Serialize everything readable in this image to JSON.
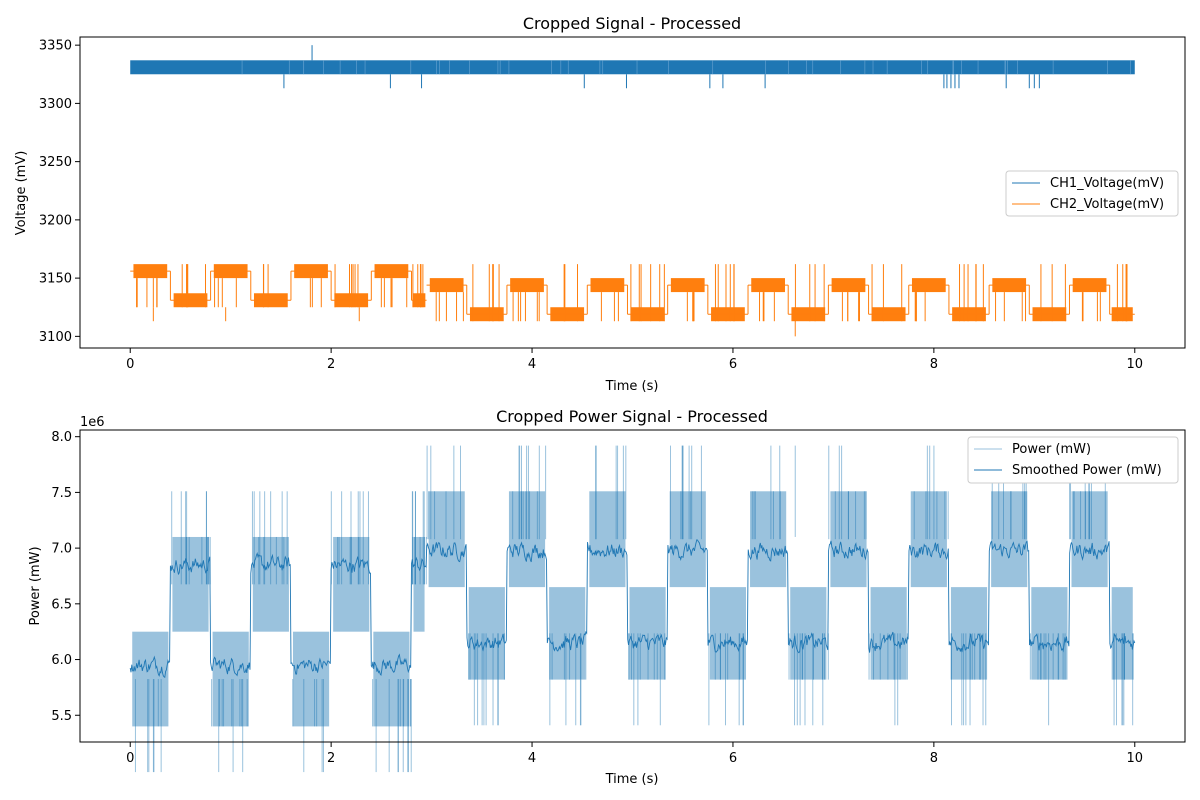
{
  "chart_data": [
    {
      "type": "line",
      "title": "Cropped Signal - Processed",
      "xlabel": "Time (s)",
      "ylabel": "Voltage (mV)",
      "xlim": [
        -0.5,
        10.5
      ],
      "ylim": [
        3090,
        3357
      ],
      "xticks": [
        0,
        2,
        4,
        6,
        8,
        10
      ],
      "yticks": [
        3100,
        3150,
        3200,
        3250,
        3300,
        3350
      ],
      "xtick_labels": [
        "0",
        "2",
        "4",
        "6",
        "8",
        "10"
      ],
      "ytick_labels": [
        "3100",
        "3150",
        "3200",
        "3250",
        "3300",
        "3350"
      ],
      "grid": false,
      "legend_placement": "center-right",
      "series": [
        {
          "name": "CH1_Voltage(mV)",
          "color": "#1f77b4",
          "band": [
            3325,
            3337
          ],
          "dip_times": [
            1.53,
            2.59,
            2.9,
            4.52,
            4.94,
            5.77,
            5.9,
            6.32,
            8.1,
            8.13,
            8.17,
            8.21,
            8.25,
            8.72,
            8.95,
            9.0,
            9.05
          ],
          "dip_value": 3313,
          "peak_times": [
            1.81
          ],
          "peak_value": 3350
        },
        {
          "name": "CH2_Voltage(mV)",
          "color": "#ff7f0e",
          "x_range": [
            0,
            10
          ],
          "segments_phase1": {
            "t_end": 2.95,
            "period": 0.8,
            "high_band": [
              3150,
              3162
            ],
            "low_band": [
              3125,
              3137
            ]
          },
          "segments_phase2": {
            "t_start": 2.95,
            "period": 0.8,
            "high_band": [
              3138,
              3150
            ],
            "low_band": [
              3113,
              3125
            ]
          },
          "spike_high": 3162,
          "spike_low": 3113,
          "outliers": [
            [
              6.62,
              3100
            ],
            [
              0.23,
              3113
            ],
            [
              0.95,
              3113
            ],
            [
              2.28,
              3113
            ]
          ]
        }
      ]
    },
    {
      "type": "line",
      "title": "Cropped Power Signal - Processed",
      "xlabel": "Time (s)",
      "ylabel": "Power (mW)",
      "offset_text": "1e6",
      "xlim": [
        -0.5,
        10.5
      ],
      "ylim": [
        5.26,
        8.06
      ],
      "xticks": [
        0,
        2,
        4,
        6,
        8,
        10
      ],
      "yticks": [
        5.5,
        6.0,
        6.5,
        7.0,
        7.5,
        8.0
      ],
      "xtick_labels": [
        "0",
        "2",
        "4",
        "6",
        "8",
        "10"
      ],
      "ytick_labels": [
        "5.5",
        "6.0",
        "6.5",
        "7.0",
        "7.5",
        "8.0"
      ],
      "grid": false,
      "legend_placement": "top-right",
      "series": [
        {
          "name": "Power (mW)",
          "color": "#1f77b4",
          "alpha": 0.45,
          "phase1": {
            "t_end": 2.95,
            "period": 0.8,
            "high_band": [
              6.25,
              7.1
            ],
            "low_band": [
              5.4,
              6.25
            ]
          },
          "phase2": {
            "t_start": 2.95,
            "period": 0.8,
            "high_band": [
              6.65,
              7.51
            ],
            "low_band": [
              5.82,
              6.65
            ]
          },
          "max_spike": [
            6.62,
            7.92
          ]
        },
        {
          "name": "Smoothed Power (mW)",
          "color": "#1f77b4",
          "phase1": {
            "high_mean": 6.85,
            "low_mean": 5.95
          },
          "phase2": {
            "high_mean": 6.98,
            "low_mean": 6.15
          },
          "noise": 0.14
        }
      ]
    }
  ]
}
